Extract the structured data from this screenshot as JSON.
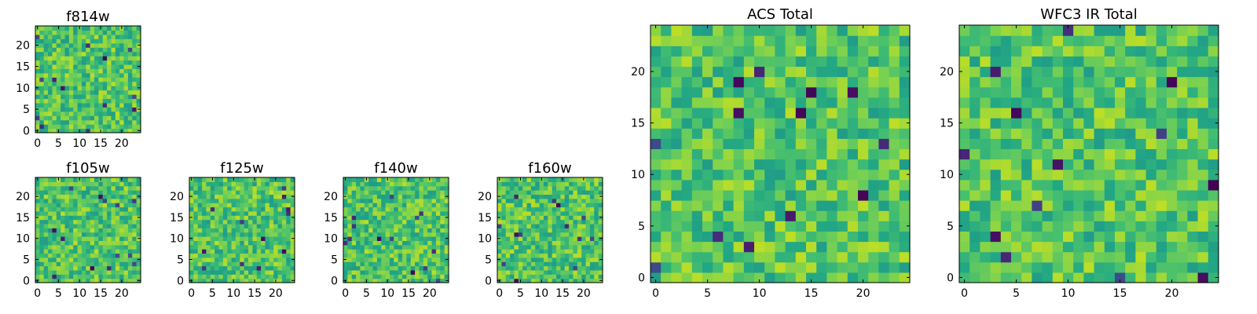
{
  "chart_data": [
    {
      "type": "heatmap",
      "title": "f814w",
      "xlim": [
        -0.5,
        24.5
      ],
      "ylim": [
        -0.5,
        24.5
      ],
      "xticks": [
        0,
        5,
        10,
        15,
        20
      ],
      "yticks": [
        0,
        5,
        10,
        15,
        20
      ],
      "xtick_labels": [
        "0",
        "5",
        "10",
        "15",
        "20"
      ],
      "ytick_labels": [
        "0",
        "5",
        "10",
        "15",
        "20"
      ],
      "grid": false,
      "colormap": "viridis",
      "shape": [
        25,
        25
      ],
      "seed": 814
    },
    {
      "type": "heatmap",
      "title": "f105w",
      "xlim": [
        -0.5,
        24.5
      ],
      "ylim": [
        -0.5,
        24.5
      ],
      "xticks": [
        0,
        5,
        10,
        15,
        20
      ],
      "yticks": [
        0,
        5,
        10,
        15,
        20
      ],
      "xtick_labels": [
        "0",
        "5",
        "10",
        "15",
        "20"
      ],
      "ytick_labels": [
        "0",
        "5",
        "10",
        "15",
        "20"
      ],
      "grid": false,
      "colormap": "viridis",
      "shape": [
        25,
        25
      ],
      "seed": 105
    },
    {
      "type": "heatmap",
      "title": "f125w",
      "xlim": [
        -0.5,
        24.5
      ],
      "ylim": [
        -0.5,
        24.5
      ],
      "xticks": [
        0,
        5,
        10,
        15,
        20
      ],
      "yticks": [
        0,
        5,
        10,
        15,
        20
      ],
      "xtick_labels": [
        "0",
        "5",
        "10",
        "15",
        "20"
      ],
      "ytick_labels": [
        "0",
        "5",
        "10",
        "15",
        "20"
      ],
      "grid": false,
      "colormap": "viridis",
      "shape": [
        25,
        25
      ],
      "seed": 125
    },
    {
      "type": "heatmap",
      "title": "f140w",
      "xlim": [
        -0.5,
        24.5
      ],
      "ylim": [
        -0.5,
        24.5
      ],
      "xticks": [
        0,
        5,
        10,
        15,
        20
      ],
      "yticks": [
        0,
        5,
        10,
        15,
        20
      ],
      "xtick_labels": [
        "0",
        "5",
        "10",
        "15",
        "20"
      ],
      "ytick_labels": [
        "0",
        "5",
        "10",
        "15",
        "20"
      ],
      "grid": false,
      "colormap": "viridis",
      "shape": [
        25,
        25
      ],
      "seed": 140
    },
    {
      "type": "heatmap",
      "title": "f160w",
      "xlim": [
        -0.5,
        24.5
      ],
      "ylim": [
        -0.5,
        24.5
      ],
      "xticks": [
        0,
        5,
        10,
        15,
        20
      ],
      "yticks": [
        0,
        5,
        10,
        15,
        20
      ],
      "xtick_labels": [
        "0",
        "5",
        "10",
        "15",
        "20"
      ],
      "ytick_labels": [
        "0",
        "5",
        "10",
        "15",
        "20"
      ],
      "grid": false,
      "colormap": "viridis",
      "shape": [
        25,
        25
      ],
      "seed": 160
    },
    {
      "type": "heatmap",
      "title": "ACS Total",
      "xlim": [
        -0.5,
        24.5
      ],
      "ylim": [
        -0.5,
        24.5
      ],
      "xticks": [
        0,
        5,
        10,
        15,
        20
      ],
      "yticks": [
        0,
        5,
        10,
        15,
        20
      ],
      "xtick_labels": [
        "0",
        "5",
        "10",
        "15",
        "20"
      ],
      "ytick_labels": [
        "0",
        "5",
        "10",
        "15",
        "20"
      ],
      "grid": false,
      "colormap": "viridis",
      "shape": [
        25,
        25
      ],
      "seed": 2001
    },
    {
      "type": "heatmap",
      "title": "WFC3 IR Total",
      "xlim": [
        -0.5,
        24.5
      ],
      "ylim": [
        -0.5,
        24.5
      ],
      "xticks": [
        0,
        5,
        10,
        15,
        20
      ],
      "yticks": [
        0,
        5,
        10,
        15,
        20
      ],
      "xtick_labels": [
        "0",
        "5",
        "10",
        "15",
        "20"
      ],
      "ytick_labels": [
        "0",
        "5",
        "10",
        "15",
        "20"
      ],
      "grid": false,
      "colormap": "viridis",
      "shape": [
        25,
        25
      ],
      "seed": 3001
    }
  ]
}
